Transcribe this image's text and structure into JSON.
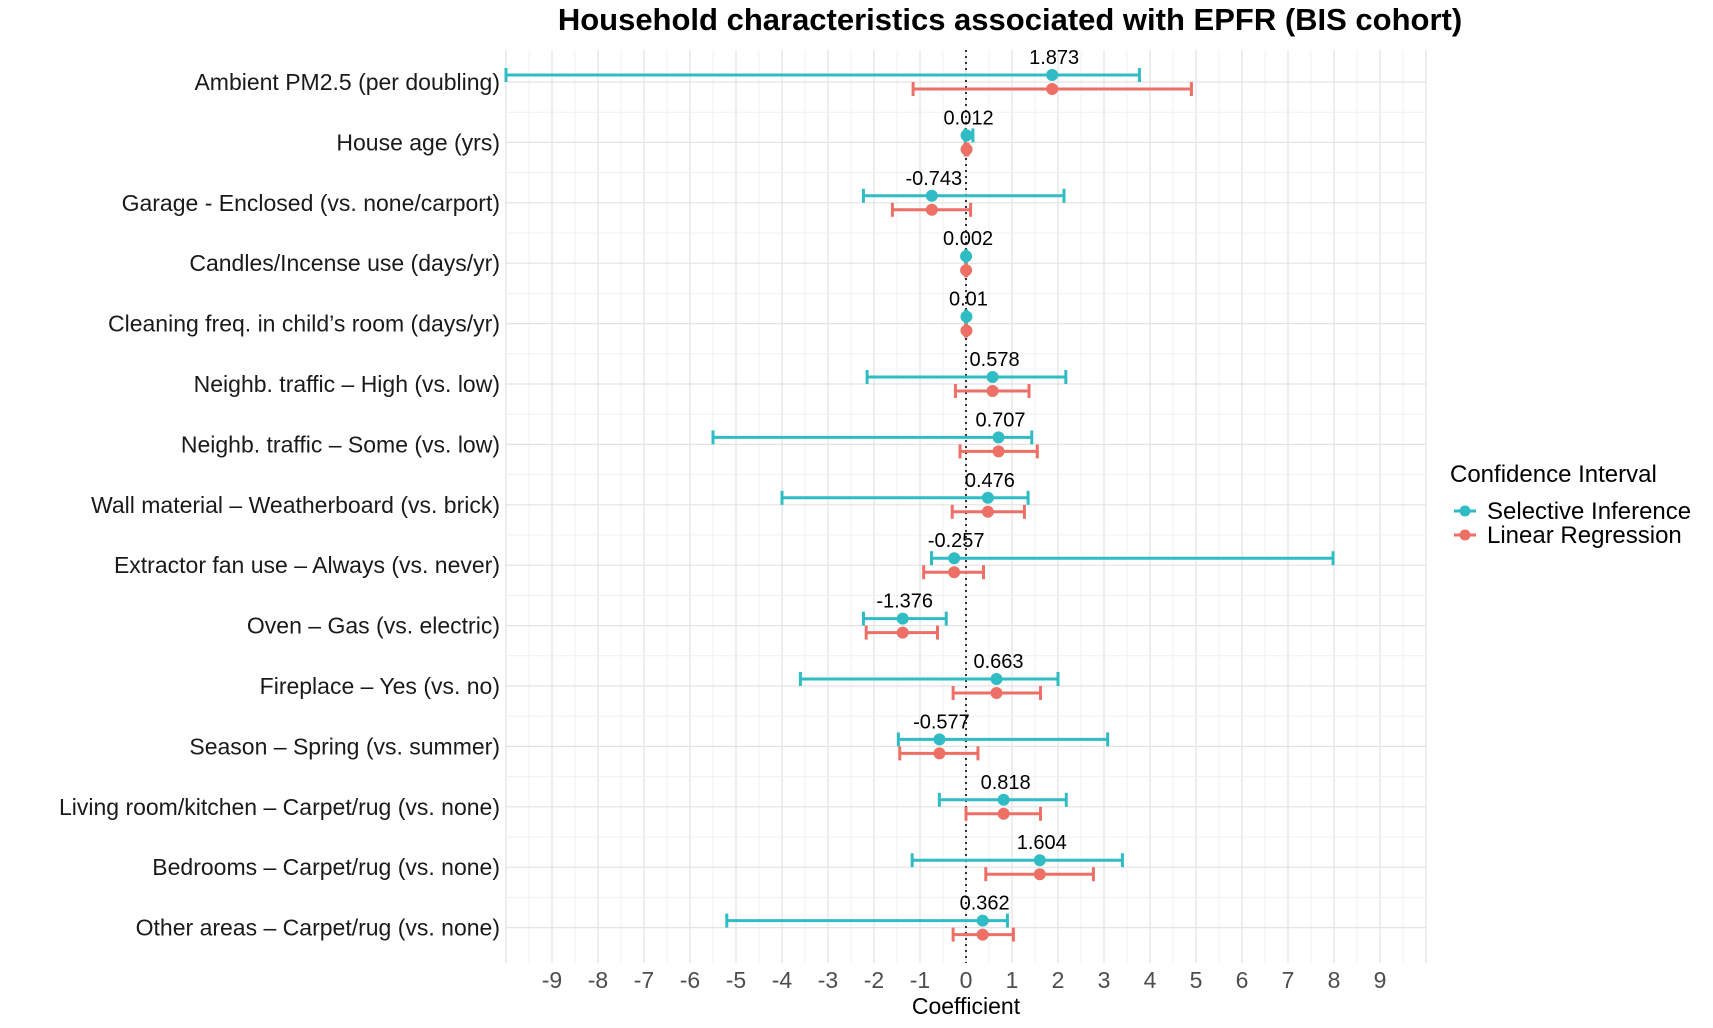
{
  "chart_data": {
    "type": "forest",
    "title": "Household characteristics associated with EPFR (BIS cohort)",
    "xlabel": "Coefficient",
    "ylabel": "",
    "xlim": [
      -10,
      10
    ],
    "xticks": [
      -9,
      -8,
      -7,
      -6,
      -5,
      -4,
      -3,
      -2,
      -1,
      0,
      1,
      2,
      3,
      4,
      5,
      6,
      7,
      8,
      9
    ],
    "reference_line": 0,
    "grid": true,
    "legend_position": "right",
    "legend": {
      "title": "Confidence Interval",
      "entries": [
        {
          "name": "Selective Inference",
          "color": "#2fbcc4"
        },
        {
          "name": "Linear Regression",
          "color": "#ee6f66"
        }
      ]
    },
    "categories": [
      "Ambient PM2.5 (per doubling)",
      "House age (yrs)",
      "Garage - Enclosed (vs. none/carport)",
      "Candles/Incense use (days/yr)",
      "Cleaning freq. in child’s room (days/yr)",
      "Neighb. traffic – High (vs. low)",
      "Neighb. traffic – Some (vs. low)",
      "Wall material – Weatherboard (vs. brick)",
      "Extractor fan use – Always (vs. never)",
      "Oven – Gas (vs. electric)",
      "Fireplace – Yes (vs. no)",
      "Season – Spring (vs. summer)",
      "Living room/kitchen – Carpet/rug (vs. none)",
      "Bedrooms – Carpet/rug (vs. none)",
      "Other areas – Carpet/rug (vs. none)"
    ],
    "estimate_labels": [
      "1.873",
      "0.012",
      "-0.743",
      "0.002",
      "0.01",
      "0.578",
      "0.707",
      "0.476",
      "-0.257",
      "-1.376",
      "0.663",
      "-0.577",
      "0.818",
      "1.604",
      "0.362"
    ],
    "series": [
      {
        "name": "Selective Inference",
        "estimate": [
          1.873,
          0.012,
          -0.743,
          0.002,
          0.01,
          0.578,
          0.707,
          0.476,
          -0.257,
          -1.376,
          0.663,
          -0.577,
          0.818,
          1.604,
          0.362
        ],
        "lower": [
          -10.0,
          -0.02,
          -2.23,
          -0.01,
          -0.01,
          -2.15,
          -5.5,
          -4.0,
          -0.75,
          -2.23,
          -3.6,
          -1.47,
          -0.58,
          -1.17,
          -5.2
        ],
        "upper": [
          3.77,
          0.15,
          2.13,
          0.01,
          0.01,
          2.17,
          1.43,
          1.35,
          7.98,
          -0.43,
          2.0,
          3.08,
          2.18,
          3.4,
          0.9
        ]
      },
      {
        "name": "Linear Regression",
        "estimate": [
          1.873,
          0.012,
          -0.743,
          0.002,
          0.01,
          0.578,
          0.707,
          0.476,
          -0.257,
          -1.376,
          0.663,
          -0.577,
          0.818,
          1.604,
          0.362
        ],
        "lower": [
          -1.15,
          -0.02,
          -1.6,
          -0.01,
          -0.01,
          -0.23,
          -0.13,
          -0.3,
          -0.92,
          -2.17,
          -0.28,
          -1.44,
          0.0,
          0.43,
          -0.28
        ],
        "upper": [
          4.9,
          0.04,
          0.1,
          0.01,
          0.01,
          1.37,
          1.55,
          1.27,
          0.38,
          -0.62,
          1.62,
          0.26,
          1.62,
          2.77,
          1.03
        ]
      }
    ]
  }
}
